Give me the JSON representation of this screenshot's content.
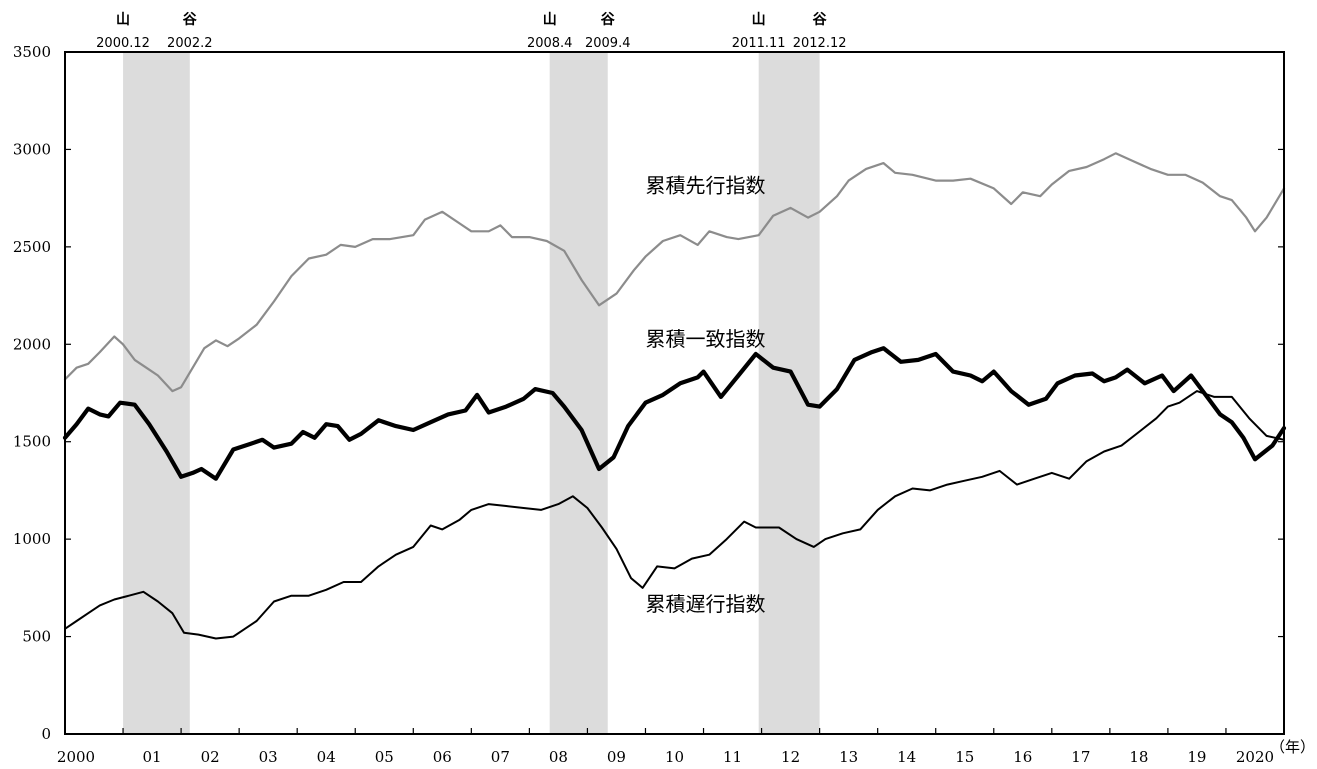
{
  "chart_data": {
    "type": "line",
    "title": "",
    "xlabel": "",
    "x_unit_label": "（年）",
    "ylabel": "",
    "ylim": [
      0,
      3500
    ],
    "xlim": [
      2000.0,
      2021.0
    ],
    "yticks": [
      0,
      500,
      1000,
      1500,
      2000,
      2500,
      3000,
      3500
    ],
    "xtick_labels": [
      {
        "x": 2000,
        "label": "2000"
      },
      {
        "x": 2001,
        "label": "01"
      },
      {
        "x": 2002,
        "label": "02"
      },
      {
        "x": 2003,
        "label": "03"
      },
      {
        "x": 2004,
        "label": "04"
      },
      {
        "x": 2005,
        "label": "05"
      },
      {
        "x": 2006,
        "label": "06"
      },
      {
        "x": 2007,
        "label": "07"
      },
      {
        "x": 2008,
        "label": "08"
      },
      {
        "x": 2009,
        "label": "09"
      },
      {
        "x": 2010,
        "label": "10"
      },
      {
        "x": 2011,
        "label": "11"
      },
      {
        "x": 2012,
        "label": "12"
      },
      {
        "x": 2013,
        "label": "13"
      },
      {
        "x": 2014,
        "label": "14"
      },
      {
        "x": 2015,
        "label": "15"
      },
      {
        "x": 2016,
        "label": "16"
      },
      {
        "x": 2017,
        "label": "17"
      },
      {
        "x": 2018,
        "label": "18"
      },
      {
        "x": 2019,
        "label": "19"
      },
      {
        "x": 2020,
        "label": "2020"
      }
    ],
    "grid": false,
    "recession_bands": [
      {
        "from": 2001.0,
        "to": 2002.15,
        "peak_mark": "山",
        "trough_mark": "谷",
        "peak_label": "2000.12",
        "trough_label": "2002.2"
      },
      {
        "from": 2008.35,
        "to": 2009.35,
        "peak_mark": "山",
        "trough_mark": "谷",
        "peak_label": "2008.4",
        "trough_label": "2009.4"
      },
      {
        "from": 2011.95,
        "to": 2013.0,
        "peak_mark": "山",
        "trough_mark": "谷",
        "peak_label": "2011.11",
        "trough_label": "2012.12"
      }
    ],
    "band_color": "#dcdcdc",
    "series": [
      {
        "name": "累積先行指数",
        "color": "#8c8c8c",
        "width": 2.2,
        "points": [
          [
            2000.0,
            1820
          ],
          [
            2000.2,
            1880
          ],
          [
            2000.4,
            1900
          ],
          [
            2000.6,
            1960
          ],
          [
            2000.85,
            2040
          ],
          [
            2001.0,
            2000
          ],
          [
            2001.2,
            1920
          ],
          [
            2001.4,
            1880
          ],
          [
            2001.6,
            1840
          ],
          [
            2001.85,
            1760
          ],
          [
            2002.0,
            1780
          ],
          [
            2002.2,
            1880
          ],
          [
            2002.4,
            1980
          ],
          [
            2002.6,
            2020
          ],
          [
            2002.8,
            1990
          ],
          [
            2003.0,
            2030
          ],
          [
            2003.3,
            2100
          ],
          [
            2003.6,
            2220
          ],
          [
            2003.9,
            2350
          ],
          [
            2004.2,
            2440
          ],
          [
            2004.5,
            2460
          ],
          [
            2004.75,
            2510
          ],
          [
            2005.0,
            2500
          ],
          [
            2005.3,
            2540
          ],
          [
            2005.6,
            2540
          ],
          [
            2006.0,
            2560
          ],
          [
            2006.2,
            2640
          ],
          [
            2006.5,
            2680
          ],
          [
            2006.8,
            2620
          ],
          [
            2007.0,
            2580
          ],
          [
            2007.3,
            2580
          ],
          [
            2007.5,
            2610
          ],
          [
            2007.7,
            2550
          ],
          [
            2008.0,
            2550
          ],
          [
            2008.3,
            2530
          ],
          [
            2008.6,
            2480
          ],
          [
            2008.9,
            2330
          ],
          [
            2009.2,
            2200
          ],
          [
            2009.5,
            2260
          ],
          [
            2009.8,
            2380
          ],
          [
            2010.0,
            2450
          ],
          [
            2010.3,
            2530
          ],
          [
            2010.6,
            2560
          ],
          [
            2010.9,
            2510
          ],
          [
            2011.1,
            2580
          ],
          [
            2011.4,
            2550
          ],
          [
            2011.6,
            2540
          ],
          [
            2011.95,
            2560
          ],
          [
            2012.2,
            2660
          ],
          [
            2012.5,
            2700
          ],
          [
            2012.8,
            2650
          ],
          [
            2013.0,
            2680
          ],
          [
            2013.3,
            2760
          ],
          [
            2013.5,
            2840
          ],
          [
            2013.8,
            2900
          ],
          [
            2014.1,
            2930
          ],
          [
            2014.3,
            2880
          ],
          [
            2014.6,
            2870
          ],
          [
            2015.0,
            2840
          ],
          [
            2015.3,
            2840
          ],
          [
            2015.6,
            2850
          ],
          [
            2016.0,
            2800
          ],
          [
            2016.3,
            2720
          ],
          [
            2016.5,
            2780
          ],
          [
            2016.8,
            2760
          ],
          [
            2017.0,
            2820
          ],
          [
            2017.3,
            2890
          ],
          [
            2017.6,
            2910
          ],
          [
            2017.9,
            2950
          ],
          [
            2018.1,
            2980
          ],
          [
            2018.4,
            2940
          ],
          [
            2018.7,
            2900
          ],
          [
            2019.0,
            2870
          ],
          [
            2019.3,
            2870
          ],
          [
            2019.6,
            2830
          ],
          [
            2019.9,
            2760
          ],
          [
            2020.1,
            2740
          ],
          [
            2020.35,
            2650
          ],
          [
            2020.5,
            2580
          ],
          [
            2020.7,
            2650
          ],
          [
            2021.0,
            2800
          ]
        ]
      },
      {
        "name": "累積一致指数",
        "color": "#000000",
        "width": 4.2,
        "points": [
          [
            2000.0,
            1520
          ],
          [
            2000.2,
            1590
          ],
          [
            2000.4,
            1670
          ],
          [
            2000.6,
            1640
          ],
          [
            2000.75,
            1630
          ],
          [
            2000.95,
            1700
          ],
          [
            2001.2,
            1690
          ],
          [
            2001.45,
            1590
          ],
          [
            2001.75,
            1450
          ],
          [
            2002.0,
            1320
          ],
          [
            2002.2,
            1340
          ],
          [
            2002.35,
            1360
          ],
          [
            2002.6,
            1310
          ],
          [
            2002.9,
            1460
          ],
          [
            2003.2,
            1490
          ],
          [
            2003.4,
            1510
          ],
          [
            2003.6,
            1470
          ],
          [
            2003.9,
            1490
          ],
          [
            2004.1,
            1550
          ],
          [
            2004.3,
            1520
          ],
          [
            2004.5,
            1590
          ],
          [
            2004.7,
            1580
          ],
          [
            2004.9,
            1510
          ],
          [
            2005.1,
            1540
          ],
          [
            2005.4,
            1610
          ],
          [
            2005.7,
            1580
          ],
          [
            2006.0,
            1560
          ],
          [
            2006.3,
            1600
          ],
          [
            2006.6,
            1640
          ],
          [
            2006.9,
            1660
          ],
          [
            2007.1,
            1740
          ],
          [
            2007.3,
            1650
          ],
          [
            2007.6,
            1680
          ],
          [
            2007.9,
            1720
          ],
          [
            2008.1,
            1770
          ],
          [
            2008.4,
            1750
          ],
          [
            2008.6,
            1680
          ],
          [
            2008.9,
            1560
          ],
          [
            2009.2,
            1360
          ],
          [
            2009.45,
            1420
          ],
          [
            2009.7,
            1580
          ],
          [
            2010.0,
            1700
          ],
          [
            2010.3,
            1740
          ],
          [
            2010.6,
            1800
          ],
          [
            2010.9,
            1830
          ],
          [
            2011.0,
            1860
          ],
          [
            2011.3,
            1730
          ],
          [
            2011.6,
            1840
          ],
          [
            2011.9,
            1950
          ],
          [
            2012.2,
            1880
          ],
          [
            2012.5,
            1860
          ],
          [
            2012.8,
            1690
          ],
          [
            2013.0,
            1680
          ],
          [
            2013.3,
            1770
          ],
          [
            2013.6,
            1920
          ],
          [
            2013.9,
            1960
          ],
          [
            2014.1,
            1980
          ],
          [
            2014.4,
            1910
          ],
          [
            2014.7,
            1920
          ],
          [
            2015.0,
            1950
          ],
          [
            2015.3,
            1860
          ],
          [
            2015.6,
            1840
          ],
          [
            2015.8,
            1810
          ],
          [
            2016.0,
            1860
          ],
          [
            2016.3,
            1760
          ],
          [
            2016.6,
            1690
          ],
          [
            2016.9,
            1720
          ],
          [
            2017.1,
            1800
          ],
          [
            2017.4,
            1840
          ],
          [
            2017.7,
            1850
          ],
          [
            2017.9,
            1810
          ],
          [
            2018.1,
            1830
          ],
          [
            2018.3,
            1870
          ],
          [
            2018.6,
            1800
          ],
          [
            2018.9,
            1840
          ],
          [
            2019.1,
            1760
          ],
          [
            2019.4,
            1840
          ],
          [
            2019.7,
            1720
          ],
          [
            2019.9,
            1640
          ],
          [
            2020.1,
            1600
          ],
          [
            2020.3,
            1520
          ],
          [
            2020.5,
            1410
          ],
          [
            2020.8,
            1480
          ],
          [
            2021.0,
            1570
          ]
        ]
      },
      {
        "name": "累積遅行指数",
        "color": "#000000",
        "width": 2.0,
        "points": [
          [
            2000.0,
            540
          ],
          [
            2000.2,
            580
          ],
          [
            2000.4,
            620
          ],
          [
            2000.6,
            660
          ],
          [
            2000.85,
            690
          ],
          [
            2001.1,
            710
          ],
          [
            2001.35,
            730
          ],
          [
            2001.6,
            680
          ],
          [
            2001.85,
            620
          ],
          [
            2002.05,
            520
          ],
          [
            2002.3,
            510
          ],
          [
            2002.6,
            490
          ],
          [
            2002.9,
            500
          ],
          [
            2003.1,
            540
          ],
          [
            2003.3,
            580
          ],
          [
            2003.6,
            680
          ],
          [
            2003.9,
            710
          ],
          [
            2004.2,
            710
          ],
          [
            2004.5,
            740
          ],
          [
            2004.8,
            780
          ],
          [
            2005.1,
            780
          ],
          [
            2005.4,
            860
          ],
          [
            2005.7,
            920
          ],
          [
            2006.0,
            960
          ],
          [
            2006.3,
            1070
          ],
          [
            2006.5,
            1050
          ],
          [
            2006.8,
            1100
          ],
          [
            2007.0,
            1150
          ],
          [
            2007.3,
            1180
          ],
          [
            2007.6,
            1170
          ],
          [
            2007.9,
            1160
          ],
          [
            2008.2,
            1150
          ],
          [
            2008.5,
            1180
          ],
          [
            2008.75,
            1220
          ],
          [
            2009.0,
            1160
          ],
          [
            2009.25,
            1060
          ],
          [
            2009.5,
            950
          ],
          [
            2009.75,
            800
          ],
          [
            2009.95,
            750
          ],
          [
            2010.2,
            860
          ],
          [
            2010.5,
            850
          ],
          [
            2010.8,
            900
          ],
          [
            2011.1,
            920
          ],
          [
            2011.4,
            1000
          ],
          [
            2011.7,
            1090
          ],
          [
            2011.9,
            1060
          ],
          [
            2012.1,
            1060
          ],
          [
            2012.3,
            1060
          ],
          [
            2012.6,
            1000
          ],
          [
            2012.9,
            960
          ],
          [
            2013.1,
            1000
          ],
          [
            2013.4,
            1030
          ],
          [
            2013.7,
            1050
          ],
          [
            2014.0,
            1150
          ],
          [
            2014.3,
            1220
          ],
          [
            2014.6,
            1260
          ],
          [
            2014.9,
            1250
          ],
          [
            2015.2,
            1280
          ],
          [
            2015.5,
            1300
          ],
          [
            2015.8,
            1320
          ],
          [
            2016.1,
            1350
          ],
          [
            2016.4,
            1280
          ],
          [
            2016.7,
            1310
          ],
          [
            2017.0,
            1340
          ],
          [
            2017.3,
            1310
          ],
          [
            2017.6,
            1400
          ],
          [
            2017.9,
            1450
          ],
          [
            2018.2,
            1480
          ],
          [
            2018.5,
            1550
          ],
          [
            2018.8,
            1620
          ],
          [
            2019.0,
            1680
          ],
          [
            2019.2,
            1700
          ],
          [
            2019.5,
            1760
          ],
          [
            2019.8,
            1730
          ],
          [
            2020.1,
            1730
          ],
          [
            2020.4,
            1620
          ],
          [
            2020.7,
            1530
          ],
          [
            2021.0,
            1510
          ]
        ]
      }
    ],
    "series_labels": [
      {
        "text": "累積先行指数",
        "x": 2010.0,
        "y": 2780
      },
      {
        "text": "累積一致指数",
        "x": 2010.0,
        "y": 1990
      },
      {
        "text": "累積遅行指数",
        "x": 2010.0,
        "y": 630
      }
    ]
  }
}
